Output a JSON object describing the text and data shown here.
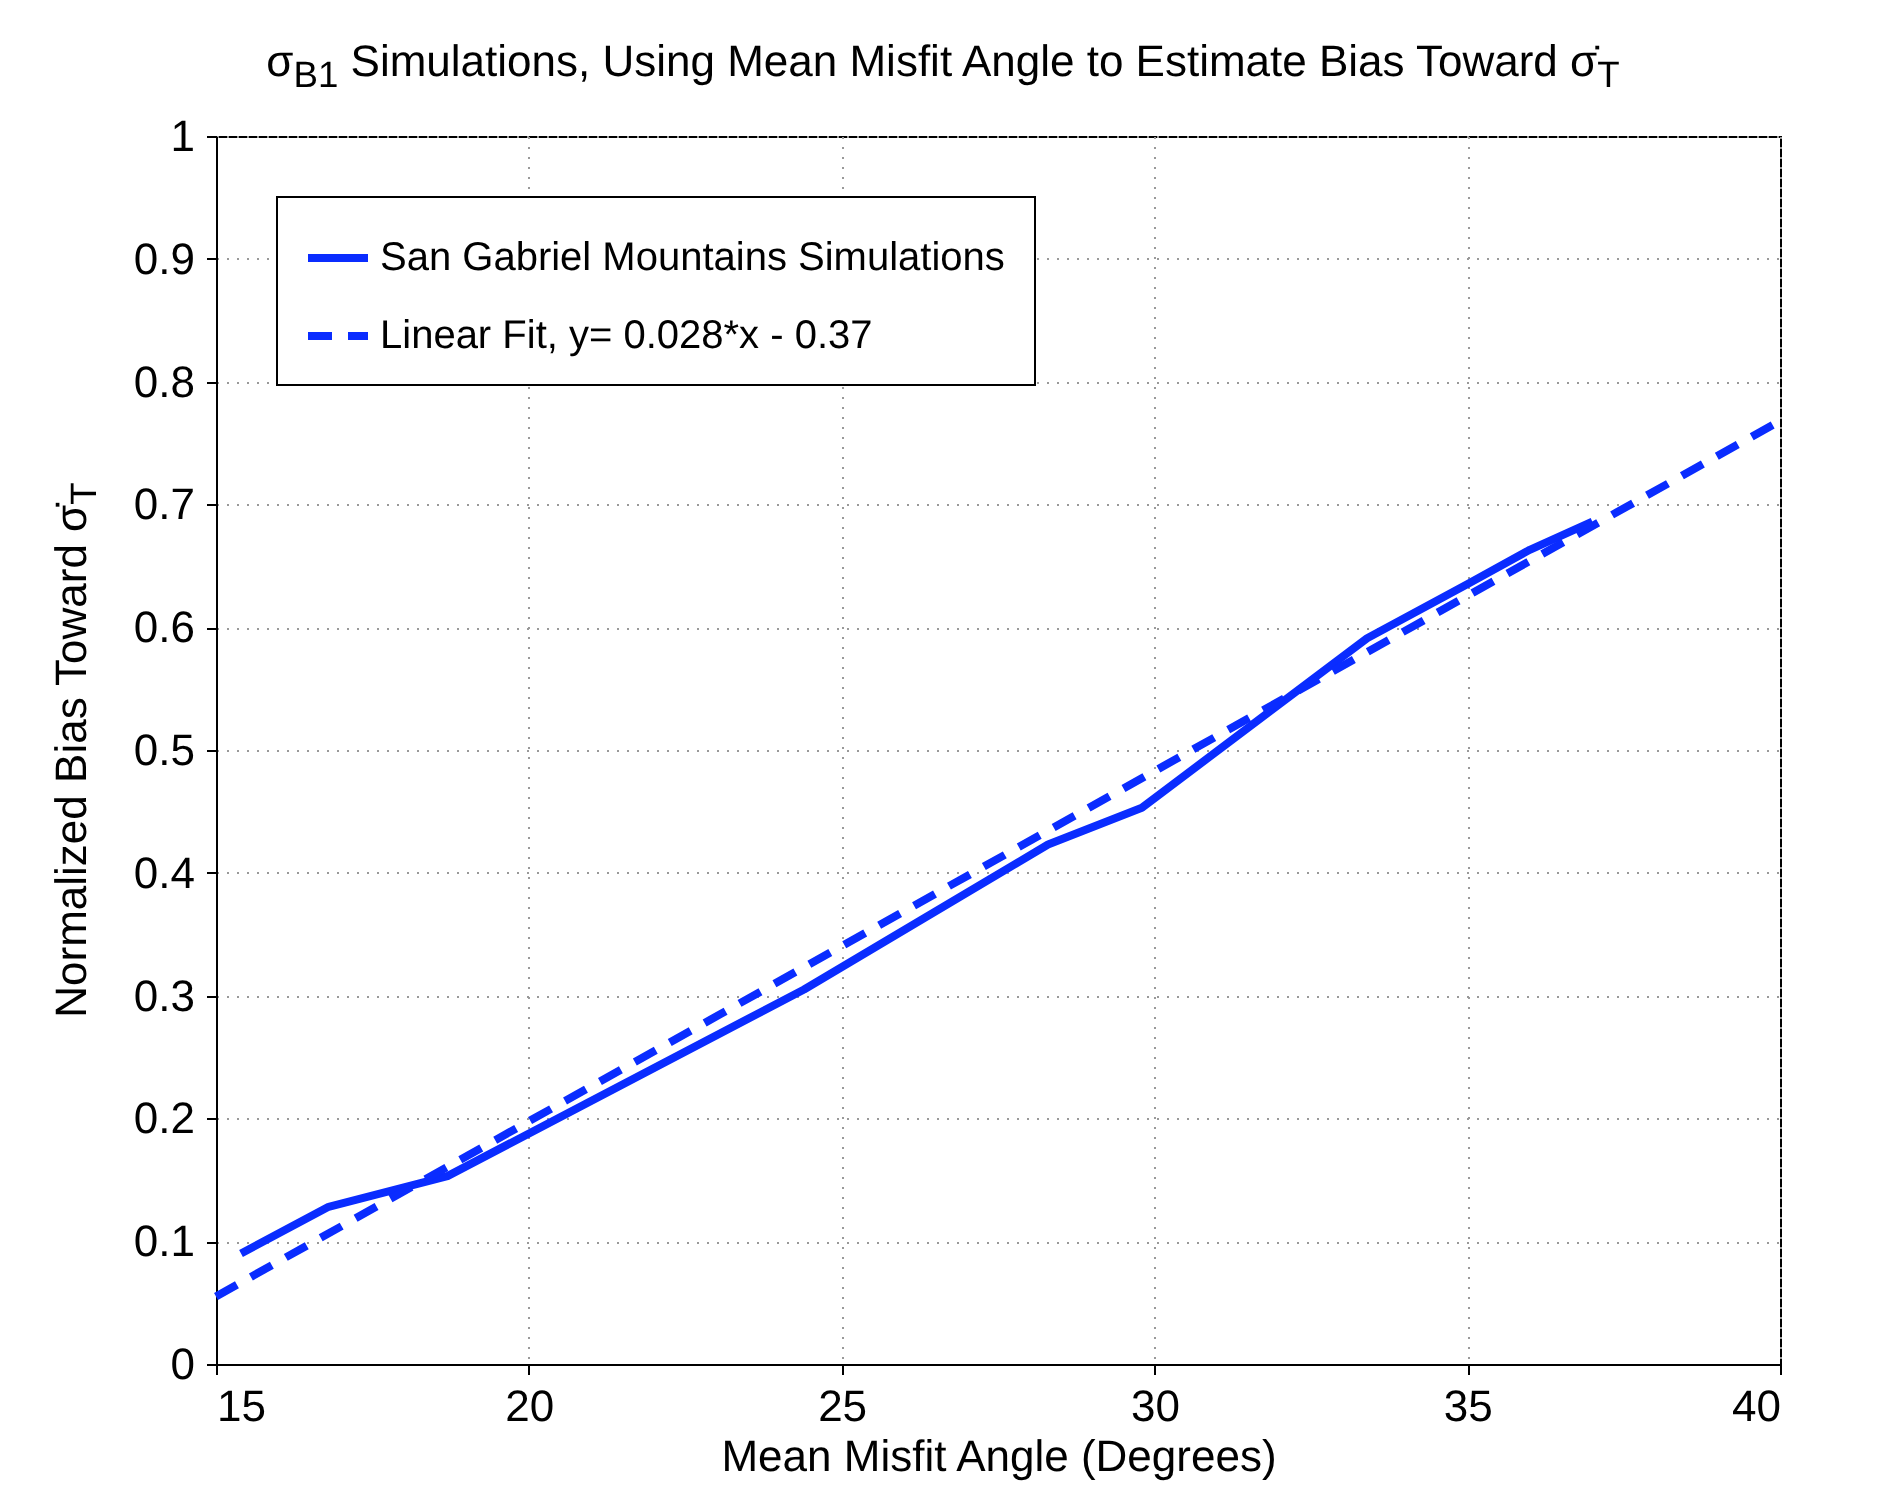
{
  "chart_data": {
    "type": "line",
    "title": "σ$_{B1}$ Simulations, Using Mean Misfit Angle to Estimate Bias Toward σ̇$_{T}$",
    "xlabel": "Mean Misfit Angle (Degrees)",
    "ylabel": "Normalized Bias Toward σ̇$_{T}$",
    "series": [
      {
        "name": "San Gabriel Mountains Simulations",
        "color": "#0a2cff",
        "line_style": "solid",
        "x": [
          15.4,
          16.8,
          18.7,
          24.4,
          28.3,
          29.8,
          33.4,
          35.0,
          36.0,
          37.0
        ],
        "values": [
          0.09,
          0.128,
          0.153,
          0.305,
          0.423,
          0.453,
          0.591,
          0.635,
          0.663,
          0.686
        ]
      },
      {
        "name": "Linear Fit,  y= 0.028*x - 0.37",
        "color": "#0a2cff",
        "line_style": "dashed",
        "x": [
          15,
          40
        ],
        "values": [
          0.055,
          0.768
        ]
      }
    ],
    "xlim": [
      15,
      40
    ],
    "xticks": [
      15,
      20,
      25,
      30,
      35,
      40
    ],
    "ylim": [
      0,
      1
    ],
    "yticks": [
      0,
      0.1,
      0.2,
      0.3,
      0.4,
      0.5,
      0.6,
      0.7,
      0.8,
      0.9,
      1
    ],
    "grid": true,
    "legend": "top left"
  }
}
